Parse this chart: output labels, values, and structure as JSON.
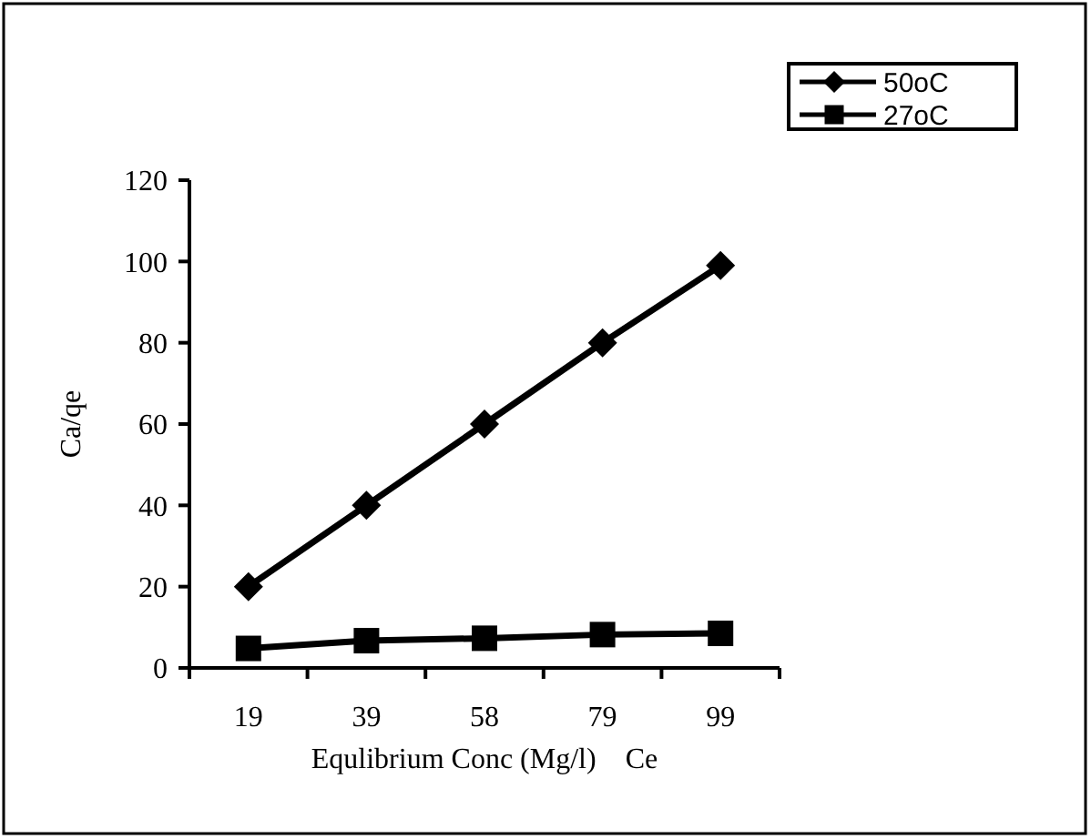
{
  "chart_data": {
    "type": "line",
    "xlabel": "Equlibrium Conc (Mg/l)    Ce",
    "ylabel": "Ca/qe",
    "categories": [
      "19",
      "39",
      "58",
      "79",
      "99"
    ],
    "series": [
      {
        "name": "50oC",
        "color": "#000000",
        "marker": "diamond",
        "values": [
          20,
          40,
          60,
          80,
          99
        ]
      },
      {
        "name": "27oC",
        "color": "#000000",
        "marker": "square",
        "values": [
          4.8,
          6.7,
          7.3,
          8.2,
          8.5
        ]
      }
    ],
    "ylim": [
      0,
      120
    ],
    "yticks": [
      0,
      20,
      40,
      60,
      80,
      100,
      120
    ],
    "grid": false,
    "legend": "top right",
    "line_style": "solid"
  }
}
